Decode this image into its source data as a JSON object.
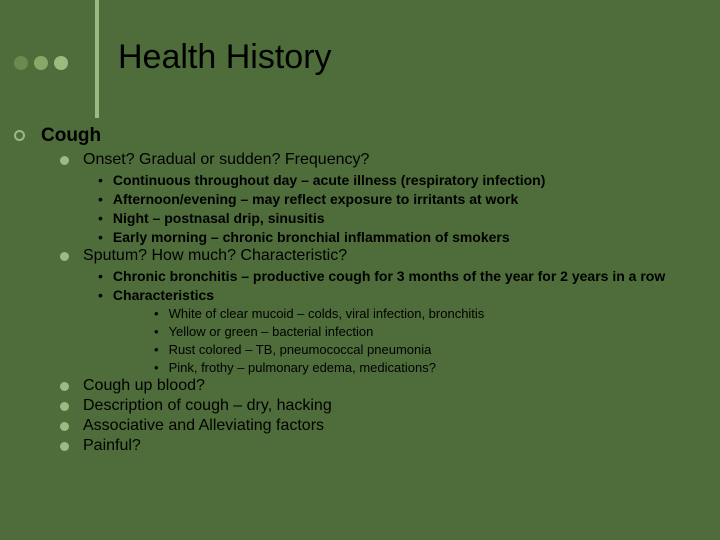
{
  "colors": {
    "background": "#4e6d3a",
    "accent": "#9bbb80",
    "text": "#000000",
    "dot1": "#6a8a4f",
    "dot2": "#87a968",
    "dot3": "#9bbb80"
  },
  "title": "Health History",
  "content": {
    "l1_heading": "Cough",
    "section1": {
      "heading": "Onset? Gradual or sudden? Frequency?",
      "items": [
        "Continuous throughout day – acute illness (respiratory infection)",
        "Afternoon/evening – may reflect exposure to irritants at work",
        "Night – postnasal drip, sinusitis",
        "Early morning – chronic bronchial inflammation of smokers"
      ]
    },
    "section2": {
      "heading": "Sputum? How much? Characteristic?",
      "items": [
        "Chronic bronchitis – productive cough for 3 months of the year for 2 years in a row",
        "Characteristics"
      ],
      "subitems": [
        "White of clear mucoid – colds, viral infection, bronchitis",
        "Yellow or green – bacterial infection",
        "Rust colored – TB, pneumococcal pneumonia",
        "Pink, frothy – pulmonary edema, medications?"
      ]
    },
    "remaining": [
      "Cough up blood?",
      "Description of cough – dry, hacking",
      "Associative and Alleviating factors",
      "Painful?"
    ]
  }
}
